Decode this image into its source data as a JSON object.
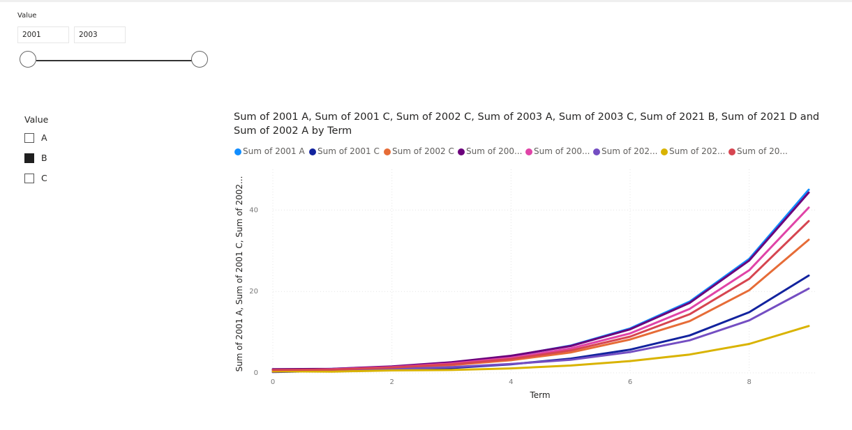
{
  "range_slicer": {
    "title": "Value",
    "from": "2001",
    "to": "2003"
  },
  "list_slicer": {
    "title": "Value",
    "items": [
      {
        "label": "A",
        "checked": false
      },
      {
        "label": "B",
        "checked": true
      },
      {
        "label": "C",
        "checked": false
      }
    ]
  },
  "chart_data": {
    "type": "line",
    "title": "Sum of 2001 A, Sum of 2001 C, Sum of 2002 C, Sum of 2003 A, Sum of 2003 C, Sum of 2021 B, Sum of 2021 D and Sum of 2002 A by Term",
    "xlabel": "Term",
    "ylabel": "Sum of 2001 A, Sum of 2001 C, Sum of 2002...",
    "xlim": [
      0,
      9
    ],
    "ylim": [
      0,
      50
    ],
    "x_ticks": [
      "0",
      "2",
      "4",
      "6",
      "8"
    ],
    "y_ticks": [
      "0",
      "20",
      "40"
    ],
    "grid": true,
    "legend_position": "top-left",
    "x": [
      0,
      1,
      2,
      3,
      4,
      5,
      6,
      7,
      8,
      9
    ],
    "series": [
      {
        "name": "Sum of 2001 A",
        "legend_label": "Sum of 2001 A",
        "color": "#118DFF",
        "values": [
          0.6,
          1.0,
          1.5,
          2.5,
          4.1,
          6.7,
          10.9,
          17.5,
          28.0,
          45.0
        ]
      },
      {
        "name": "Sum of 2001 C",
        "legend_label": "Sum of 2001 C",
        "color": "#12239E",
        "values": [
          0.2,
          0.5,
          0.8,
          1.2,
          2.1,
          3.5,
          5.7,
          9.2,
          14.9,
          23.9
        ]
      },
      {
        "name": "Sum of 2002 C",
        "legend_label": "Sum of 2002 C",
        "color": "#E66C37",
        "values": [
          0.3,
          0.7,
          1.2,
          1.9,
          3.1,
          5.0,
          8.2,
          12.7,
          20.3,
          32.7
        ]
      },
      {
        "name": "Sum of 2003 A",
        "legend_label": "Sum of 200...",
        "color": "#6B007B",
        "values": [
          0.9,
          1.0,
          1.6,
          2.6,
          4.2,
          6.6,
          10.7,
          17.2,
          27.6,
          44.3
        ]
      },
      {
        "name": "Sum of 2003 C",
        "legend_label": "Sum of 200...",
        "color": "#E044A7",
        "values": [
          0.5,
          0.9,
          1.4,
          2.3,
          3.7,
          6.0,
          9.7,
          15.7,
          25.2,
          40.6
        ]
      },
      {
        "name": "Sum of 2021 B",
        "legend_label": "Sum of 202...",
        "color": "#744EC2",
        "values": [
          0.4,
          0.6,
          0.9,
          1.4,
          2.2,
          3.2,
          5.1,
          8.0,
          12.9,
          20.7
        ]
      },
      {
        "name": "Sum of 2021 D",
        "legend_label": "Sum of 202...",
        "color": "#D9B300",
        "values": [
          0.4,
          0.3,
          0.6,
          0.7,
          1.1,
          1.8,
          2.9,
          4.5,
          7.1,
          11.5
        ]
      },
      {
        "name": "Sum of 2002 A",
        "legend_label": "Sum of 20...",
        "color": "#D64550",
        "values": [
          0.7,
          0.8,
          1.3,
          2.1,
          3.4,
          5.5,
          8.9,
          14.4,
          23.1,
          37.3
        ]
      }
    ]
  }
}
